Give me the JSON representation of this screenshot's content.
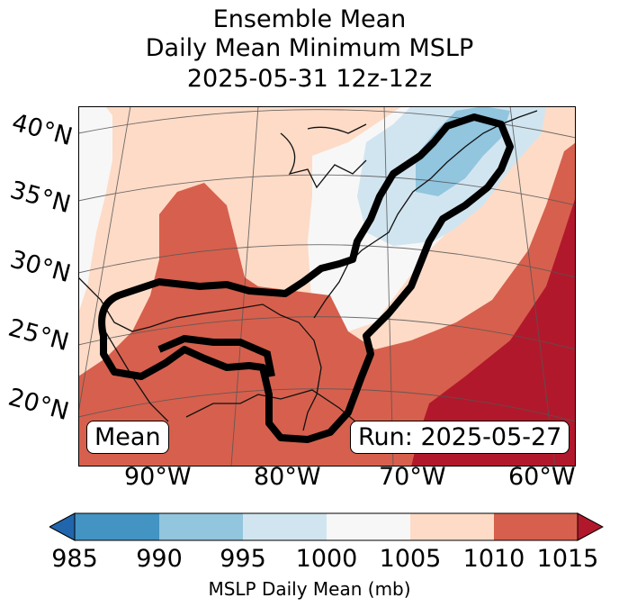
{
  "title": {
    "line1": "Ensemble Mean",
    "line2": "Daily Mean Minimum MSLP",
    "line3": "2025-05-31 12z-12z"
  },
  "map": {
    "lat_labels": [
      "40°N",
      "35°N",
      "30°N",
      "25°N",
      "20°N"
    ],
    "lon_labels": [
      "90°W",
      "80°W",
      "70°W",
      "60°W"
    ],
    "mean_label": "Mean",
    "run_label": "Run: 2025-05-27"
  },
  "colorbar": {
    "ticks": [
      "985",
      "990",
      "995",
      "1000",
      "1005",
      "1010",
      "1015"
    ],
    "label": "MSLP Daily Mean (mb)",
    "bins": [
      {
        "range": "<985",
        "color": "#2166ac"
      },
      {
        "range": "985-990",
        "color": "#4393c3"
      },
      {
        "range": "990-995",
        "color": "#92c5de"
      },
      {
        "range": "995-1000",
        "color": "#d1e5f0"
      },
      {
        "range": "1000-1005",
        "color": "#f7f7f7"
      },
      {
        "range": "1005-1010",
        "color": "#fddbc7"
      },
      {
        "range": "1010-1015",
        "color": "#d6604d"
      },
      {
        "range": ">1015",
        "color": "#b2182b"
      }
    ]
  }
}
